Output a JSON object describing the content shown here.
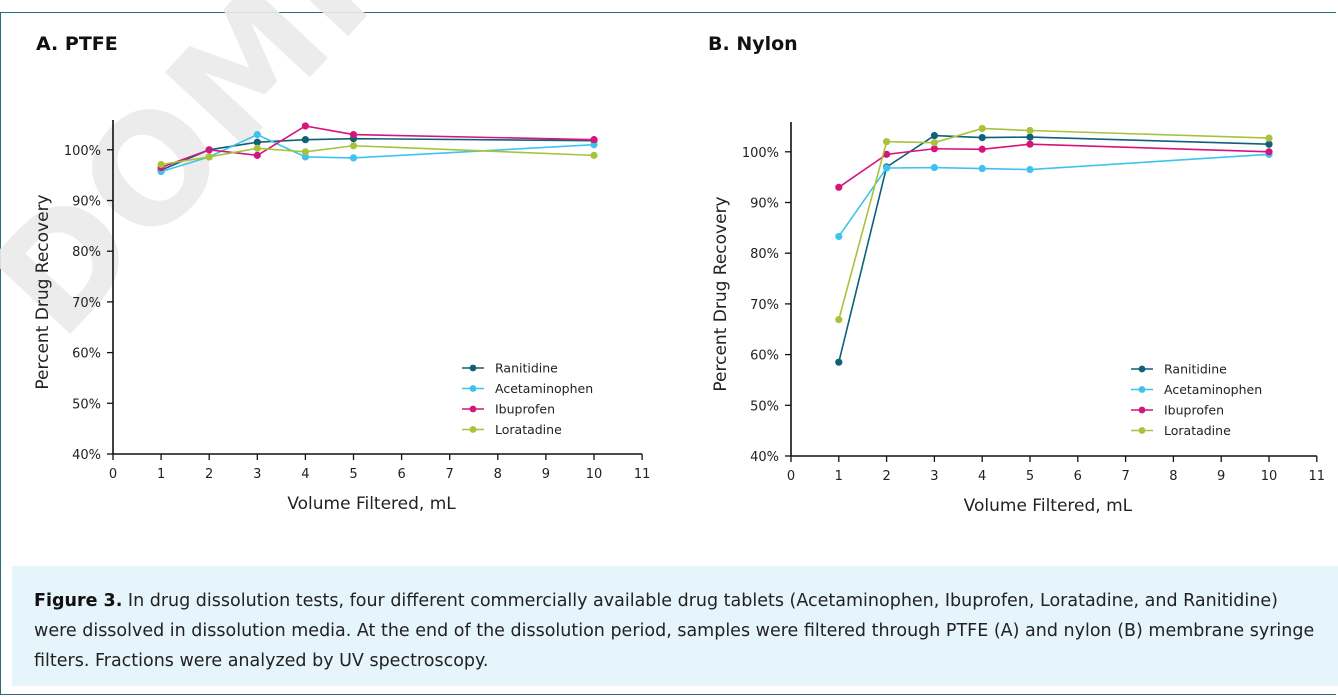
{
  "watermark_text": "DOMINIQUE",
  "caption": {
    "label": "Figure 3.",
    "text": " In drug dissolution tests, four different commercially available drug tablets (Acetaminophen, Ibuprofen, Loratadine, and Ranitidine) were dissolved in dissolution media. At the end of the dissolution period, samples were filtered through PTFE (A) and nylon (B) membrane syringe filters. Fractions were analyzed by UV spectroscopy."
  },
  "chart_data": [
    {
      "type": "line",
      "title": "A. PTFE",
      "xlabel": "Volume Filtered, mL",
      "ylabel": "Percent Drug Recovery",
      "xlim": [
        0,
        11
      ],
      "ylim": [
        40,
        105
      ],
      "xticks": [
        "0",
        "1",
        "2",
        "3",
        "4",
        "5",
        "6",
        "7",
        "8",
        "9",
        "10",
        "11"
      ],
      "yticks": [
        "40%",
        "50%",
        "60%",
        "70%",
        "80%",
        "90%",
        "100%"
      ],
      "legend": "bottom-right",
      "x": [
        1,
        2,
        3,
        4,
        5,
        10
      ],
      "series": [
        {
          "name": "Ranitidine",
          "color": "#0f6177",
          "values": [
            96.0,
            100.0,
            101.5,
            102.0,
            102.2,
            101.8
          ]
        },
        {
          "name": "Acetaminophen",
          "color": "#3ec4ec",
          "values": [
            95.7,
            98.6,
            103.0,
            98.6,
            98.4,
            101.0
          ]
        },
        {
          "name": "Ibuprofen",
          "color": "#d6157c",
          "values": [
            96.5,
            100.0,
            98.9,
            104.7,
            103.0,
            102.0
          ]
        },
        {
          "name": "Loratadine",
          "color": "#a9c23c",
          "values": [
            97.1,
            98.6,
            100.3,
            99.6,
            100.8,
            98.9
          ]
        }
      ]
    },
    {
      "type": "line",
      "title": "B. Nylon",
      "xlabel": "Volume Filtered, mL",
      "ylabel": "Percent Drug Recovery",
      "xlim": [
        0,
        11
      ],
      "ylim": [
        40,
        105
      ],
      "xticks": [
        "0",
        "1",
        "2",
        "3",
        "4",
        "5",
        "6",
        "7",
        "8",
        "9",
        "10",
        "11"
      ],
      "yticks": [
        "40%",
        "50%",
        "60%",
        "70%",
        "80%",
        "90%",
        "100%"
      ],
      "legend": "bottom-right",
      "x": [
        1,
        2,
        3,
        4,
        5,
        10
      ],
      "series": [
        {
          "name": "Ranitidine",
          "color": "#0f6177",
          "values": [
            58.5,
            97.0,
            103.2,
            102.8,
            102.9,
            101.5
          ]
        },
        {
          "name": "Acetaminophen",
          "color": "#3ec4ec",
          "values": [
            83.3,
            96.8,
            96.9,
            96.7,
            96.5,
            99.5
          ]
        },
        {
          "name": "Ibuprofen",
          "color": "#d6157c",
          "values": [
            93.0,
            99.5,
            100.6,
            100.5,
            101.5,
            100.0
          ]
        },
        {
          "name": "Loratadine",
          "color": "#a9c23c",
          "values": [
            66.9,
            102.0,
            101.8,
            104.6,
            104.2,
            102.7
          ]
        }
      ]
    }
  ]
}
